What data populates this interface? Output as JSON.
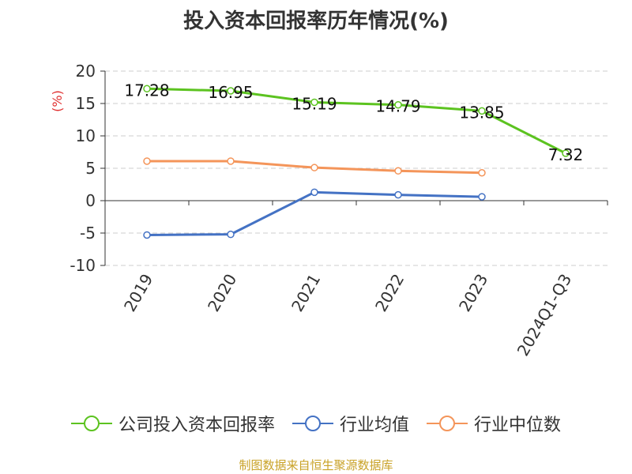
{
  "title": "投入资本回报率历年情况(%)",
  "source": "制图数据来自恒生聚源数据库",
  "chart_data": {
    "type": "line",
    "title": "投入资本回报率历年情况(%)",
    "ylabel": "(%)",
    "xlabel": "",
    "categories": [
      "2019",
      "2020",
      "2021",
      "2022",
      "2023",
      "2024Q1-Q3"
    ],
    "ylim": [
      -10,
      20
    ],
    "yticks": [
      20,
      15,
      10,
      5,
      0,
      -5,
      -10
    ],
    "ytick_labels": [
      "20",
      "15",
      "10",
      "5",
      "0",
      "-5",
      "-10"
    ],
    "grid": "horizontal dashed",
    "legend_position": "bottom",
    "series": [
      {
        "name": "公司投入资本回报率",
        "color": "#5cc320",
        "values": [
          17.28,
          16.95,
          15.19,
          14.79,
          13.85,
          7.32
        ],
        "labels": [
          "17.28",
          "16.95",
          "15.19",
          "14.79",
          "13.85",
          "7.32"
        ]
      },
      {
        "name": "行业均值",
        "color": "#4472c4",
        "values": [
          -5.3,
          -5.2,
          1.3,
          0.9,
          0.6,
          null
        ]
      },
      {
        "name": "行业中位数",
        "color": "#f4955a",
        "values": [
          6.1,
          6.1,
          5.1,
          4.6,
          4.3,
          null
        ]
      }
    ]
  }
}
